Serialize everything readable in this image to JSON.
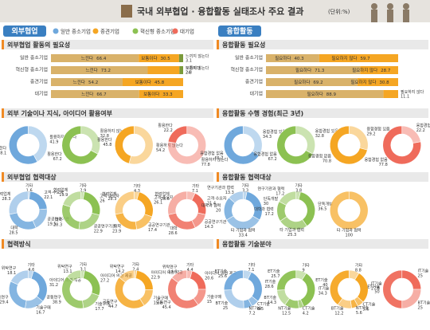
{
  "header": {
    "title": "국내 외부협업 · 융합활동 실태조사 주요 결과",
    "unit": "(단위:%)"
  },
  "legend": [
    {
      "name": "일반 중소기업",
      "color": "#6fa8dc"
    },
    {
      "name": "중견기업",
      "color": "#f5a623"
    },
    {
      "name": "혁신형 중소기업",
      "color": "#8cc152"
    },
    {
      "name": "대기업",
      "color": "#ef6b5b"
    }
  ],
  "left": {
    "tag": "외부협업",
    "sections": [
      {
        "type": "stacked",
        "title": "외부협업 활동의 필요성",
        "rows": [
          "일반 중소기업",
          "혁신형 중소기업",
          "중견기업",
          "대기업"
        ],
        "segments": [
          {
            "name": "느낀다",
            "color": "#d9b26a",
            "values": [
              66.4,
              73.2,
              54.2,
              66.7
            ]
          },
          {
            "name": "보통이다",
            "color": "#f5a623",
            "values": [
              30.5,
              24.0,
              45.8,
              33.3
            ]
          },
          {
            "name": "느끼지 않는다",
            "color": "#7a9a3a",
            "values": [
              3.1,
              2.8,
              null,
              null
            ]
          }
        ]
      },
      {
        "type": "donuts",
        "title": "외부 기술이나 지식, 아이디어 활용여부",
        "colors": [
          "#6fa8dc",
          "#8cc152",
          "#f5a623",
          "#ef6b5b"
        ],
        "labels": [
          "활용하지 않는다",
          "활용한다"
        ],
        "donuts": [
          [
            41.9,
            58.1
          ],
          [
            32.8,
            67.2
          ],
          [
            54.2,
            45.8
          ],
          [
            77.8,
            22.2
          ]
        ]
      },
      {
        "type": "donuts",
        "title": "외부협업 협력대상",
        "colors": [
          "#6fa8dc",
          "#8cc152",
          "#f5a623",
          "#ef6b5b"
        ],
        "labels": [
          "기타",
          "고객·수요자",
          "공공연구기관",
          "대학",
          "협력업체"
        ],
        "donuts": [
          [
            1.6,
            22.1,
            19.5,
            28.5,
            28.3
          ],
          [
            2.9,
            26.0,
            22.9,
            28.3,
            19.9
          ],
          [
            4.3,
            26.1,
            17.4,
            23.9,
            28.3
          ],
          [
            7.1,
            21.4,
            14.3,
            28.6,
            28.6
          ]
        ]
      },
      {
        "type": "donuts",
        "title": "협력방식",
        "colors": [
          "#6fa8dc",
          "#8cc152",
          "#f5a623",
          "#ef6b5b"
        ],
        "labels": [
          "기타",
          "아이디어 의견 제공",
          "기술구매",
          "공동연구",
          "위탁연구"
        ],
        "donuts": [
          [
            4.6,
            31.2,
            16.7,
            29.4,
            18.1
          ],
          [
            3.1,
            27.2,
            17.7,
            38.9,
            13.1
          ],
          [
            2.4,
            22.9,
            15.8,
            44.7,
            14.2
          ],
          [
            4.4,
            20.6,
            15.0,
            45.4,
            14.6
          ]
        ]
      }
    ]
  },
  "right": {
    "tag": "융합활동",
    "sections": [
      {
        "type": "stacked",
        "title": "융합활동 필요성",
        "rows": [
          "일반 중소기업",
          "혁신형 중소기업",
          "중견기업",
          "대기업"
        ],
        "segments": [
          {
            "name": "필요하다",
            "color": "#d9b26a",
            "values": [
              40.3,
              71.3,
              69.2,
              88.9
            ]
          },
          {
            "name": "필요하지 않다",
            "color": "#f5a623",
            "values": [
              59.7,
              28.7,
              30.8,
              11.1
            ]
          }
        ]
      },
      {
        "type": "donuts",
        "title": "융합활동 수행 경험(최근 3년)",
        "colors": [
          "#6fa8dc",
          "#8cc152",
          "#f5a623",
          "#ef6b5b"
        ],
        "labels": [
          "융합경험 있음",
          "융합경험 없음"
        ],
        "donuts": [
          [
            34.3,
            65.7
          ],
          [
            32.8,
            67.2
          ],
          [
            29.2,
            70.8
          ],
          [
            22.2,
            77.8
          ]
        ]
      },
      {
        "type": "donuts",
        "title": "융합활동 협력대상",
        "colors": [
          "#6fa8dc",
          "#8cc152",
          "#f5a623"
        ],
        "labels": [
          "기타",
          "단독개발",
          "타 기업과 협력",
          "대학과 협력",
          "연구기관과 협력"
        ],
        "donuts": [
          [
            3.3,
            30.0,
            33.4,
            20.0,
            13.3
          ],
          [
            3.8,
            36.5,
            25.3,
            17.2,
            17.2
          ],
          [
            null,
            null,
            100,
            null,
            null
          ]
        ]
      },
      {
        "type": "donuts",
        "title": "융합활동 기술분야",
        "colors": [
          "#6fa8dc",
          "#8cc152",
          "#f5a623",
          "#ef6b5b"
        ],
        "labels": [
          "기타",
          "IT기술",
          "CT기술",
          "NT기술",
          "BT기술",
          "ET기술"
        ],
        "donuts": [
          [
            7.1,
            28.6,
            6.5,
            7.2,
            25.0,
            25.6
          ],
          [
            9.0,
            34.3,
            4.2,
            12.5,
            14.3,
            25.7
          ],
          [
            8.8,
            27.8,
            5.6,
            5.6,
            12.2,
            40.0
          ],
          [
            null,
            25.0,
            null,
            null,
            25.0,
            50.0
          ]
        ]
      }
    ]
  }
}
